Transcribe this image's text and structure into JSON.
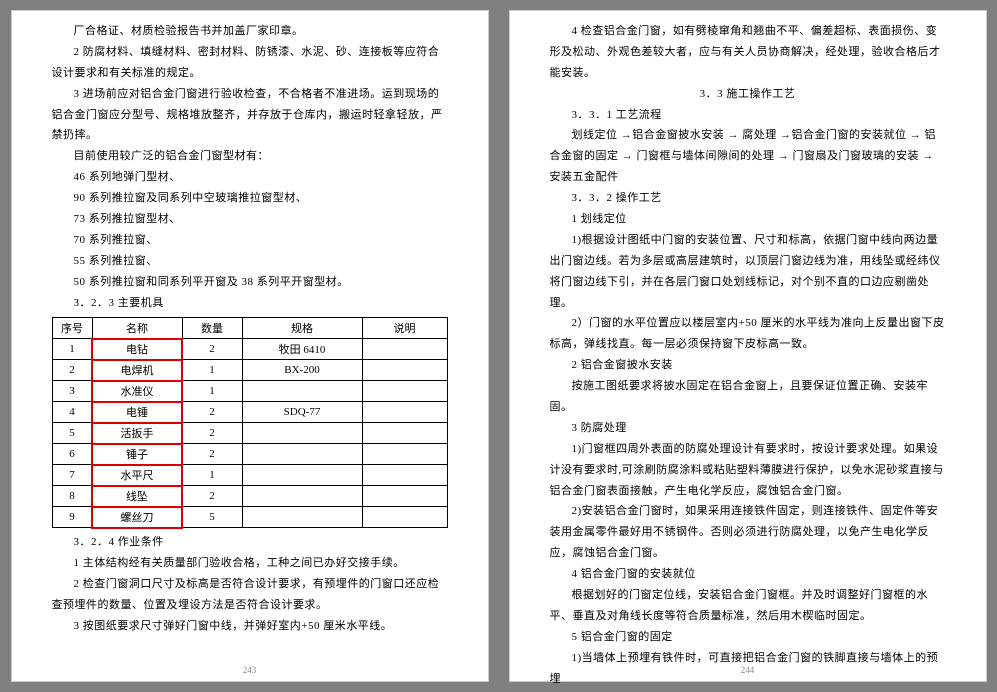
{
  "pageLeft": {
    "number": "243",
    "paras": [
      "厂合格证、材质检验报告书并加盖厂家印章。",
      "2 防腐材料、填缝材料、密封材料、防锈漆、水泥、砂、连接板等应符合设计要求和有关标准的规定。",
      "3 进场前应对铝合金门窗进行验收检查，不合格者不准进场。运到现场的铝合金门窗应分型号、规格堆放整齐，并存放于仓库内，搬运时轻拿轻放，严禁扔摔。",
      "目前使用较广泛的铝合金门窗型材有：",
      "46 系列地弹门型材、",
      "90 系列推拉窗及同系列中空玻璃推拉窗型材、",
      "73 系列推拉窗型材、",
      "70 系列推拉窗、",
      "55 系列推拉窗、",
      "50 系列推拉窗和同系列平开窗及 38 系列平开窗型材。",
      "3．2．3 主要机具"
    ],
    "table": {
      "headers": [
        "序号",
        "名称",
        "数量",
        "规格",
        "说明"
      ],
      "rows": [
        [
          "1",
          "电钻",
          "2",
          "牧田 6410",
          ""
        ],
        [
          "2",
          "电焊机",
          "1",
          "BX-200",
          ""
        ],
        [
          "3",
          "水准仪",
          "1",
          "",
          ""
        ],
        [
          "4",
          "电锤",
          "2",
          "SDQ-77",
          ""
        ],
        [
          "5",
          "活扳手",
          "2",
          "",
          ""
        ],
        [
          "6",
          "锤子",
          "2",
          "",
          ""
        ],
        [
          "7",
          "水平尺",
          "1",
          "",
          ""
        ],
        [
          "8",
          "线坠",
          "2",
          "",
          ""
        ],
        [
          "9",
          "螺丝刀",
          "5",
          "",
          ""
        ]
      ],
      "highlight_red_box": {
        "col": 1,
        "color": "#d00"
      }
    },
    "paras2": [
      "3．2．4 作业条件",
      "1 主体结构经有关质量部门验收合格，工种之间已办好交接手续。",
      "2 检查门窗洞口尺寸及标高是否符合设计要求，有预埋件的门窗口还应检查预埋件的数量、位置及埋设方法是否符合设计要求。",
      "3 按图纸要求尺寸弹好门窗中线，并弹好室内+50 厘米水平线。"
    ]
  },
  "pageRight": {
    "number": "244",
    "paras": [
      "4 检查铝合金门窗，如有劈棱窜角和翘曲不平、偏差超标、表面损伤、变形及松动、外观色差较大者，应与有关人员协商解决，经处理，验收合格后才能安装。"
    ],
    "center1": "3．3 施工操作工艺",
    "paras2": [
      "3．3．1 工艺流程",
      "划线定位 →铝合金窗披水安装 → 腐处理 →铝合金门窗的安装就位 → 铝合金窗的固定 → 门窗框与墙体间隙间的处理 → 门窗扇及门窗玻璃的安装 → 安装五金配件",
      "3．3．2 操作工艺",
      "1 划线定位",
      "1)根据设计图纸中门窗的安装位置、尺寸和标高，依据门窗中线向两边量出门窗边线。若为多层或高层建筑时，以顶层门窗边线为准，用线坠或经纬仪将门窗边线下引，并在各层门窗口处划线标记，对个别不直的口边应剔凿处理。",
      "2）门窗的水平位置应以楼层室内+50 厘米的水平线为准向上反量出窗下皮标高，弹线找直。每一层必须保持窗下皮标高一致。",
      "2 铝合金窗披水安装",
      "按施工图纸要求将披水固定在铝合金窗上，且要保证位置正确、安装牢固。",
      "3 防腐处理",
      "1)门窗框四周外表面的防腐处理设计有要求时，按设计要求处理。如果设计没有要求时,可涂刷防腐涂料或粘贴塑料薄膜进行保护，以免水泥砂浆直接与铝合金门窗表面接触，产生电化学反应，腐蚀铝合金门窗。",
      "2)安装铝合金门窗时，如果采用连接铁件固定，则连接铁件、固定件等安装用金属零件最好用不锈钢件。否则必须进行防腐处理，以免产生电化学反应，腐蚀铝合金门窗。",
      "4 铝合金门窗的安装就位",
      "根据划好的门窗定位线，安装铝合金门窗框。并及时调整好门窗框的水平、垂直及对角线长度等符合质量标准，然后用木楔临时固定。",
      "5 铝合金门窗的固定",
      "1)当墙体上预埋有铁件时，可直接把铝合金门窗的铁脚直接与墙体上的预埋"
    ]
  }
}
